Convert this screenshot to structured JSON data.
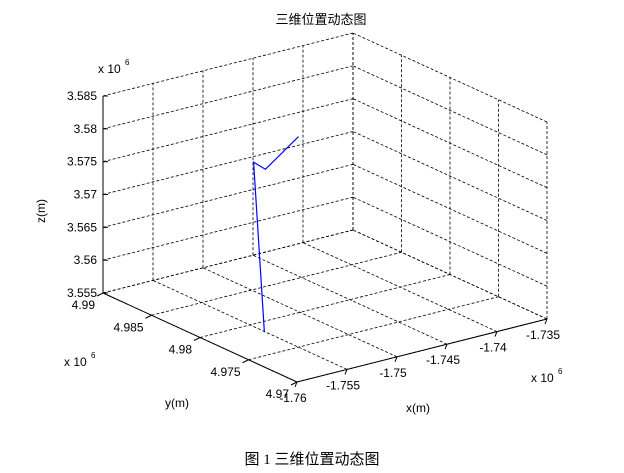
{
  "chart_data": {
    "type": "line",
    "title": "三维位置动态图",
    "xlabel": "x(m)",
    "ylabel": "y(m)",
    "zlabel": "z(m)",
    "x_exponent": "x 10",
    "y_exponent": "x 10",
    "z_exponent": "x 10",
    "exponent_power": "6",
    "xlim": [
      -1.76,
      -1.735
    ],
    "ylim": [
      4.97,
      4.99
    ],
    "zlim": [
      3.555,
      3.585
    ],
    "x_ticks": [
      "-1.76",
      "-1.755",
      "-1.75",
      "-1.745",
      "-1.74",
      "-1.735"
    ],
    "y_ticks": [
      "4.97",
      "4.975",
      "4.98",
      "4.985",
      "4.99"
    ],
    "z_ticks": [
      "3.555",
      "3.56",
      "3.565",
      "3.57",
      "3.575",
      "3.58",
      "3.585"
    ],
    "grid": true,
    "series": [
      {
        "color": "#0000ff",
        "x": [
          -1.7588,
          -1.7462,
          -1.7455,
          -1.742
        ],
        "y": [
          4.9746,
          4.9887,
          4.9882,
          4.9884
        ],
        "z": [
          3.559,
          3.5705,
          3.5695,
          3.573
        ]
      }
    ]
  },
  "caption": "图 1  三维位置动态图"
}
